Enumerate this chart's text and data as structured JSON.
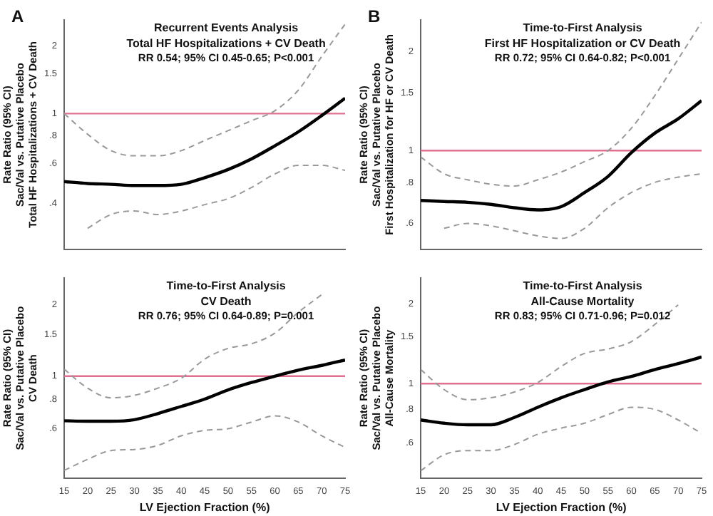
{
  "chart_data": [
    {
      "type": "line",
      "title": "Recurrent Events Analysis",
      "subtitle": "Total HF Hospitalizations + CV Death",
      "annotations": [
        "A",
        "RR 0.54; 95% CI 0.45-0.65; P<0.001"
      ],
      "ylabel": "Rate Ratio (95% CI)\nSac/Val vs. Putative Placebo\nTotal HF Hospitalizations + CV Death",
      "log": "y",
      "grid": false,
      "legend": false,
      "marker": "none",
      "tick_labels": "y",
      "x": [
        15,
        20,
        25,
        30,
        35,
        40,
        45,
        50,
        55,
        60,
        65,
        70,
        75
      ],
      "xlim": [
        15,
        75
      ],
      "ylim": [
        0.25,
        2.6
      ],
      "yticks": [
        {
          "value": 0.4,
          "label": ".4"
        },
        {
          "value": 0.6,
          "label": ".6"
        },
        {
          "value": 0.8,
          "label": ".8"
        },
        1,
        1.5,
        2
      ],
      "ref_lines": [
        {
          "axis": "y",
          "value": 1,
          "color": "#e07090"
        }
      ],
      "series": [
        {
          "color": "#000000",
          "line_style": "solid",
          "values": [
            0.5,
            0.49,
            0.486,
            0.48,
            0.48,
            0.486,
            0.52,
            0.565,
            0.63,
            0.72,
            0.83,
            0.98,
            1.17
          ]
        },
        {
          "color": "#999999",
          "line_style": "dashed",
          "values": [
            1.0,
            0.81,
            0.685,
            0.65,
            0.65,
            0.685,
            0.76,
            0.84,
            0.93,
            1.03,
            1.27,
            1.79,
            2.49
          ]
        },
        {
          "color": "#999999",
          "line_style": "dashed",
          "values": [
            null,
            0.31,
            0.357,
            0.37,
            0.357,
            0.37,
            0.395,
            0.42,
            0.47,
            0.54,
            0.59,
            0.59,
            0.56
          ]
        }
      ]
    },
    {
      "type": "line",
      "title": "Time-to-First Analysis",
      "subtitle": "First HF Hospitalization or CV Death",
      "annotations": [
        "B",
        "RR 0.72; 95% CI 0.64-0.82; P<0.001"
      ],
      "ylabel": "Rate Ratio (95% CI)\nSac/Val vs. Putative Placebo\nFirst Hospitalization for HF or CV Death",
      "log": "y",
      "grid": false,
      "legend": false,
      "marker": "none",
      "tick_labels": "y",
      "x": [
        15,
        20,
        25,
        30,
        35,
        40,
        45,
        50,
        55,
        60,
        65,
        70,
        75
      ],
      "xlim": [
        15,
        75
      ],
      "ylim": [
        0.5,
        2.5
      ],
      "yticks": [
        {
          "value": 0.6,
          "label": ".6"
        },
        {
          "value": 0.8,
          "label": ".8"
        },
        1,
        1.5,
        2
      ],
      "ref_lines": [
        {
          "axis": "y",
          "value": 1,
          "color": "#e07090"
        }
      ],
      "series": [
        {
          "color": "#000000",
          "line_style": "solid",
          "values": [
            0.705,
            0.7,
            0.696,
            0.686,
            0.67,
            0.66,
            0.675,
            0.745,
            0.834,
            0.986,
            1.13,
            1.25,
            1.42
          ]
        },
        {
          "color": "#999999",
          "line_style": "dashed",
          "values": [
            0.956,
            0.85,
            0.815,
            0.79,
            0.78,
            0.815,
            0.86,
            0.926,
            1.0,
            1.17,
            1.47,
            1.9,
            2.46
          ]
        },
        {
          "color": "#999999",
          "line_style": "dashed",
          "values": [
            null,
            0.58,
            0.6,
            0.59,
            0.57,
            0.55,
            0.54,
            0.58,
            0.67,
            0.745,
            0.8,
            0.83,
            0.85
          ]
        }
      ]
    },
    {
      "type": "line",
      "title": "Time-to-First Analysis",
      "subtitle": "CV Death",
      "annotations": [
        "RR 0.76; 95% CI 0.64-0.89; P=0.001"
      ],
      "ylabel": "Rate Ratio (95% CI)\nSac/Val vs. Putative Placebo\nCV Death",
      "xlabel": "LV Ejection Fraction (%)",
      "log": "y",
      "grid": false,
      "legend": false,
      "marker": "none",
      "x": [
        15,
        20,
        25,
        30,
        35,
        40,
        45,
        50,
        55,
        60,
        65,
        70,
        75
      ],
      "xlim": [
        15,
        75
      ],
      "xticks": [
        15,
        20,
        25,
        30,
        35,
        40,
        45,
        50,
        55,
        60,
        65,
        70,
        75
      ],
      "ylim": [
        0.37,
        2.6
      ],
      "yticks": [
        {
          "value": 0.6,
          "label": ".6"
        },
        {
          "value": 0.8,
          "label": ".8"
        },
        1,
        1.5,
        2
      ],
      "ref_lines": [
        {
          "axis": "y",
          "value": 1,
          "color": "#e07090"
        }
      ],
      "series": [
        {
          "color": "#000000",
          "line_style": "solid",
          "values": [
            0.648,
            0.645,
            0.645,
            0.655,
            0.695,
            0.745,
            0.8,
            0.875,
            0.94,
            1.0,
            1.06,
            1.11,
            1.17
          ]
        },
        {
          "color": "#999999",
          "line_style": "dashed",
          "values": [
            1.07,
            0.89,
            0.81,
            0.83,
            0.89,
            0.98,
            1.18,
            1.31,
            1.37,
            1.52,
            1.86,
            2.21,
            null
          ]
        },
        {
          "color": "#999999",
          "line_style": "dashed",
          "values": [
            0.4,
            0.445,
            0.485,
            0.49,
            0.51,
            0.56,
            0.59,
            0.6,
            0.64,
            0.68,
            0.64,
            0.56,
            0.5
          ]
        }
      ]
    },
    {
      "type": "line",
      "title": "Time-to-First Analysis",
      "subtitle": "All-Cause Mortality",
      "annotations": [
        "RR 0.83; 95% CI 0.71-0.96; P=0.012"
      ],
      "ylabel": "Rate Ratio (95% CI)\nSac/Val vs. Putative Placebo\nAll-Cause Mortality",
      "xlabel": "LV Ejection Fraction (%)",
      "log": "y",
      "grid": false,
      "legend": false,
      "marker": "none",
      "x": [
        15,
        20,
        25,
        30,
        35,
        40,
        45,
        50,
        55,
        60,
        65,
        70,
        75
      ],
      "xlim": [
        15,
        75
      ],
      "xticks": [
        15,
        20,
        25,
        30,
        35,
        40,
        45,
        50,
        55,
        60,
        65,
        70,
        75
      ],
      "ylim": [
        0.44,
        2.5
      ],
      "yticks": [
        {
          "value": 0.6,
          "label": ".6"
        },
        {
          "value": 0.8,
          "label": ".8"
        },
        1,
        {
          "value": 1.5,
          "label": "1.5"
        },
        2
      ],
      "ref_lines": [
        {
          "axis": "y",
          "value": 1,
          "color": "#e07090"
        }
      ],
      "series": [
        {
          "color": "#000000",
          "line_style": "solid",
          "values": [
            0.73,
            0.71,
            0.7,
            0.7,
            0.746,
            0.815,
            0.885,
            0.95,
            1.015,
            1.065,
            1.13,
            1.19,
            1.26
          ]
        },
        {
          "color": "#999999",
          "line_style": "dashed",
          "values": [
            1.13,
            0.95,
            0.87,
            0.885,
            0.93,
            1.01,
            1.16,
            1.3,
            1.35,
            1.44,
            1.67,
            1.98,
            null
          ]
        },
        {
          "color": "#999999",
          "line_style": "dashed",
          "values": [
            0.47,
            0.54,
            0.56,
            0.56,
            0.59,
            0.645,
            0.68,
            0.71,
            0.765,
            0.815,
            0.8,
            0.73,
            0.65
          ]
        }
      ]
    }
  ]
}
